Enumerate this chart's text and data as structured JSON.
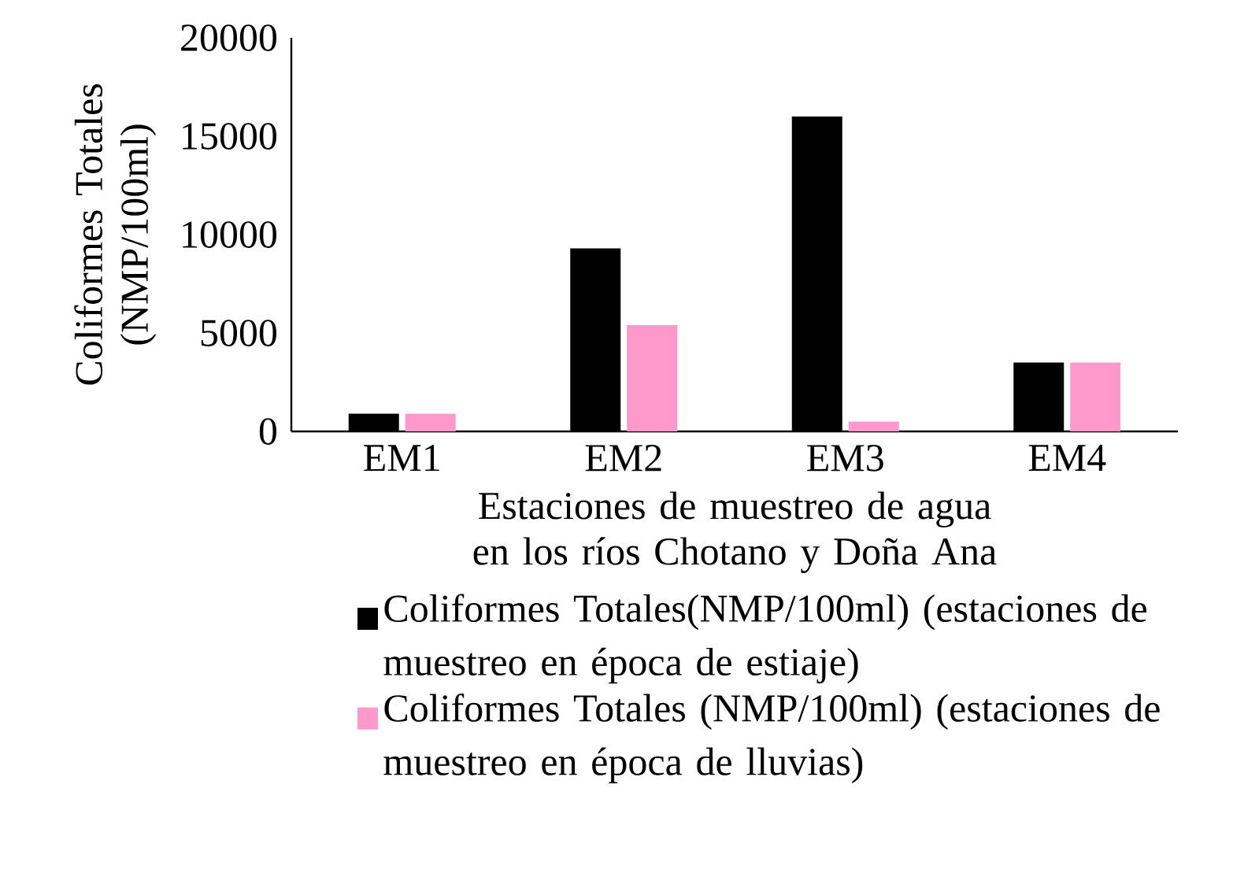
{
  "chart_data": {
    "type": "bar",
    "xlabel": "Estaciones de muestreo de agua en los ríos Chotano y Doña Ana",
    "ylabel": "Coliformes Totales (NMP/100ml)",
    "categories": [
      "EM1",
      "EM2",
      "EM3",
      "EM4"
    ],
    "series": [
      {
        "name": "Coliformes Totales(NMP/100ml) (estaciones de muestreo en época de estiaje)",
        "color": "#000000",
        "values": [
          900,
          9300,
          16000,
          3500
        ]
      },
      {
        "name": "Coliformes Totales (NMP/100ml) (estaciones de muestreo en época de lluvias)",
        "color": "#ff99cc",
        "values": [
          900,
          5400,
          500,
          3500
        ]
      }
    ],
    "ylim": [
      0,
      20000
    ],
    "yticks": [
      0,
      5000,
      10000,
      15000,
      20000
    ],
    "grid": false,
    "legend": "bottom"
  }
}
